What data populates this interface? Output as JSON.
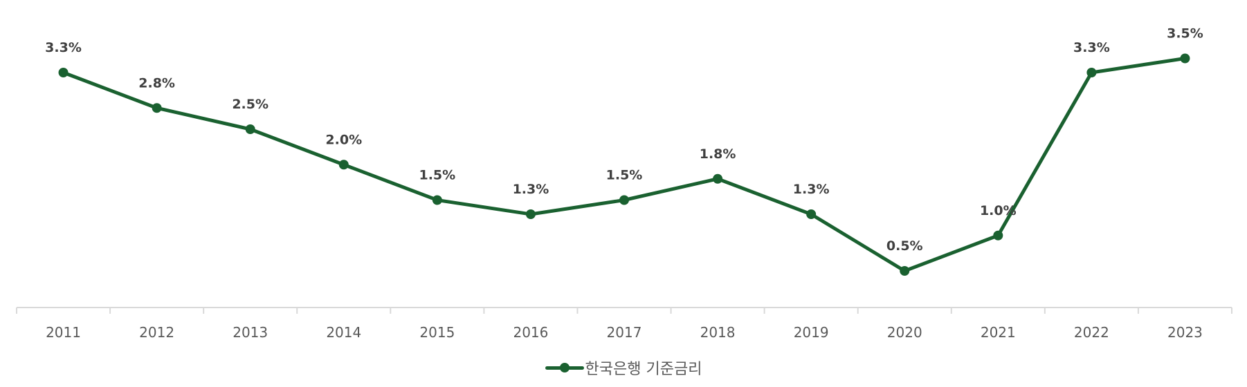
{
  "chart_data": {
    "type": "line",
    "title": "",
    "xlabel": "",
    "ylabel": "",
    "categories": [
      "2011",
      "2012",
      "2013",
      "2014",
      "2015",
      "2016",
      "2017",
      "2018",
      "2019",
      "2020",
      "2021",
      "2022",
      "2023"
    ],
    "series": [
      {
        "name": "한국은행 기준금리",
        "color": "#1a6130",
        "values": [
          3.3,
          2.8,
          2.5,
          2.0,
          1.5,
          1.3,
          1.5,
          1.8,
          1.3,
          0.5,
          1.0,
          3.3,
          3.5
        ],
        "labels": [
          "3.3%",
          "2.8%",
          "2.5%",
          "2.0%",
          "1.5%",
          "1.3%",
          "1.5%",
          "1.8%",
          "1.3%",
          "0.5%",
          "1.0%",
          "3.3%",
          "3.5%"
        ]
      }
    ],
    "ylim": [
      -0.5,
      3.8
    ],
    "grid": false,
    "y_axis_visible": false,
    "data_labels": true,
    "legend_position": "bottom"
  },
  "legend": {
    "label": "한국은행 기준금리"
  }
}
